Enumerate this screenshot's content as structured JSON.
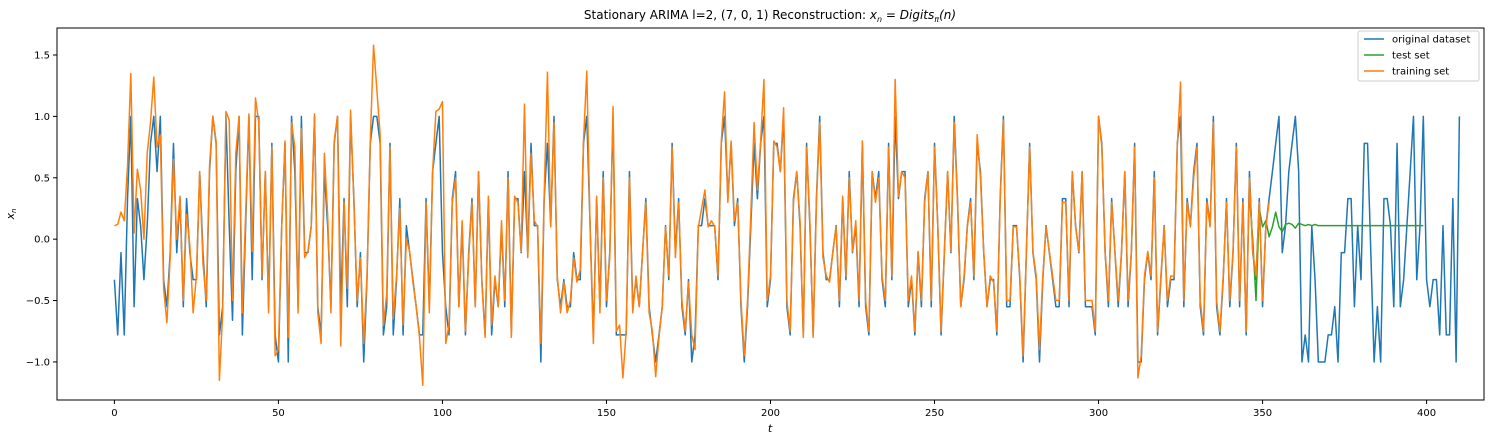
{
  "chart_data": {
    "type": "line",
    "title": "Stationary ARIMA l=2, (7, 0, 1) Reconstruction: x_n = Digits_π(n)",
    "title_parts": {
      "prefix": "Stationary ARIMA l=2, (7, 0, 1) Reconstruction: ",
      "x": "x",
      "n": "n",
      "equals": " = ",
      "digits": "Digits",
      "pi": "π",
      "arg": "(n)"
    },
    "xlabel": "t",
    "ylabel_base": "x",
    "ylabel_sub": "n",
    "xlim": [
      -17.5,
      417.5
    ],
    "ylim": [
      -1.31,
      1.72
    ],
    "x_ticks": [
      0,
      50,
      100,
      150,
      200,
      250,
      300,
      350,
      400
    ],
    "x_tick_labels": [
      "0",
      "50",
      "100",
      "150",
      "200",
      "250",
      "300",
      "350",
      "400"
    ],
    "y_ticks": [
      -1.0,
      -0.5,
      0.0,
      0.5,
      1.0,
      1.5
    ],
    "y_tick_labels": [
      "−1.0",
      "−0.5",
      "0.0",
      "0.5",
      "1.0",
      "1.5"
    ],
    "legend_position": "top-right",
    "grid": false,
    "series": [
      {
        "name": "original dataset",
        "color": "#1f77b4",
        "x_start": 0,
        "values": [
          -0.33,
          -0.78,
          -0.11,
          -0.78,
          0.33,
          1.0,
          -0.55,
          0.33,
          0.11,
          -0.33,
          0.11,
          0.78,
          1.0,
          0.55,
          1.0,
          -0.33,
          -0.55,
          -0.11,
          0.78,
          -0.11,
          0.33,
          -0.55,
          0.33,
          -0.11,
          -0.33,
          -0.33,
          0.55,
          -0.11,
          -0.55,
          0.55,
          1.0,
          0.78,
          -0.78,
          -0.55,
          1.0,
          0.11,
          -0.66,
          0.55,
          1.0,
          -0.78,
          0.11,
          1.0,
          -0.33,
          1.0,
          1.0,
          -0.33,
          0.55,
          -0.55,
          0.78,
          -0.78,
          -1.0,
          0.11,
          0.78,
          -1.0,
          1.0,
          0.55,
          -0.55,
          1.0,
          -0.11,
          -0.11,
          0.11,
          1.0,
          -0.55,
          -0.78,
          0.55,
          0.11,
          -0.55,
          0.78,
          1.0,
          -0.55,
          0.33,
          -0.55,
          1.0,
          0.33,
          -0.55,
          -0.11,
          -1.0,
          -0.33,
          0.78,
          1.0,
          1.0,
          0.78,
          -0.78,
          -0.55,
          0.78,
          -0.78,
          -0.33,
          0.33,
          -0.78,
          0.11,
          -0.11,
          -0.33,
          -0.55,
          -0.78,
          -0.78,
          0.33,
          -0.55,
          0.55,
          0.78,
          1.0,
          -0.11,
          -0.55,
          -0.78,
          0.33,
          0.55,
          -0.55,
          0.11,
          -0.78,
          -0.11,
          0.33,
          -0.55,
          0.55,
          -0.33,
          -0.78,
          0.33,
          -0.78,
          -0.33,
          -0.55,
          0.11,
          -0.55,
          0.55,
          -0.78,
          0.33,
          0.33,
          -0.11,
          0.55,
          -0.11,
          0.78,
          0.11,
          0.11,
          -1.0,
          0.33,
          0.78,
          0.11,
          1.0,
          -0.33,
          -0.55,
          -0.33,
          -0.55,
          -0.55,
          -0.11,
          -0.33,
          -0.33,
          0.78,
          1.0,
          0.11,
          -0.78,
          0.33,
          -0.55,
          0.55,
          -0.55,
          -0.11,
          1.0,
          -0.78,
          -0.78,
          -0.78,
          -0.78,
          0.55,
          -0.55,
          -0.33,
          -0.55,
          -0.11,
          0.33,
          -0.55,
          -0.78,
          -1.0,
          -0.78,
          -0.55,
          0.11,
          -0.33,
          0.78,
          -0.11,
          0.33,
          -0.55,
          -0.78,
          -0.33,
          -1.0,
          -0.78,
          0.11,
          0.11,
          0.33,
          0.11,
          0.11,
          0.11,
          -0.33,
          0.78,
          1.0,
          0.33,
          0.78,
          0.11,
          0.33,
          -0.55,
          -1.0,
          -0.55,
          0.11,
          0.78,
          0.33,
          0.78,
          1.0,
          -0.55,
          -0.33,
          0.78,
          0.78,
          0.55,
          1.0,
          -0.55,
          -0.78,
          0.33,
          0.55,
          0.11,
          -0.78,
          0.78,
          0.11,
          -0.78,
          0.33,
          1.0,
          -0.11,
          -0.33,
          -0.33,
          -0.11,
          0.11,
          -0.55,
          0.33,
          -0.33,
          0.55,
          -0.11,
          0.11,
          -0.55,
          0.78,
          -0.55,
          -0.78,
          0.55,
          0.33,
          0.55,
          -0.33,
          -0.55,
          0.78,
          -0.33,
          1.0,
          0.33,
          0.55,
          0.55,
          -0.55,
          -0.33,
          -0.78,
          -0.11,
          -0.55,
          0.33,
          0.55,
          -0.55,
          0.78,
          0.11,
          -0.78,
          -0.11,
          0.55,
          -0.11,
          1.0,
          0.33,
          -0.55,
          -0.33,
          0.11,
          0.33,
          -0.33,
          0.78,
          0.55,
          -0.11,
          -0.55,
          -0.33,
          -0.33,
          -0.78,
          0.33,
          1.0,
          -0.55,
          -0.55,
          0.11,
          0.11,
          -0.33,
          -1.0,
          -0.11,
          0.78,
          -0.11,
          -0.33,
          -1.0,
          -0.33,
          0.11,
          -0.11,
          -0.33,
          -0.55,
          -0.55,
          0.33,
          0.33,
          -0.55,
          0.55,
          0.11,
          -0.11,
          0.55,
          -0.55,
          -0.55,
          -0.55,
          -0.78,
          1.0,
          0.78,
          -0.11,
          -0.55,
          0.33,
          -0.11,
          -0.55,
          -0.11,
          0.55,
          -0.55,
          -0.11,
          0.78,
          -1.0,
          -1.0,
          -0.33,
          -0.11,
          -0.33,
          0.55,
          -0.78,
          -0.33,
          0.11,
          -0.55,
          -0.33,
          -0.33,
          0.78,
          1.0,
          -0.55,
          0.33,
          0.11,
          0.55,
          0.78,
          -0.55,
          -0.78,
          0.33,
          0.11,
          1.0,
          -0.55,
          -0.78,
          -0.33,
          0.33,
          -0.55,
          -0.11,
          0.78,
          -0.55,
          0.33,
          -0.78,
          0.55,
          -0.11,
          -0.33,
          0.33,
          -0.55,
          0.11,
          0.33,
          0.55,
          0.78,
          1.0,
          -0.11,
          0.11,
          0.55,
          0.78,
          1.0,
          0.55,
          -1.0,
          -0.78,
          -1.0,
          0.11,
          -0.33,
          -1.0,
          -1.0,
          -1.0,
          -0.78,
          -0.78,
          -0.55,
          -1.0,
          -0.11,
          -0.11,
          0.33,
          0.33,
          -0.55,
          0.11,
          -0.33,
          0.78,
          0.78,
          -0.11,
          -1.0,
          -0.55,
          -1.0,
          0.33,
          0.33,
          0.11,
          -0.55,
          0.78,
          -0.55,
          -0.33,
          0.11,
          0.55,
          1.0,
          -0.33,
          0.11,
          1.0,
          -0.33,
          -0.55,
          -0.33,
          -0.33,
          -0.78,
          0.11,
          -0.78,
          -0.78,
          0.33,
          -1.0,
          1.0
        ]
      },
      {
        "name": "test set",
        "color": "#2ca02c",
        "x_start": 346,
        "values": [
          0.35,
          0.0,
          -0.5,
          0.25,
          0.1,
          0.15,
          0.02,
          0.1,
          0.22,
          0.1,
          0.06,
          0.12,
          0.13,
          0.12,
          0.09,
          0.13,
          0.12,
          0.11,
          0.12,
          0.11,
          0.12,
          0.11,
          0.11,
          0.11,
          0.11,
          0.11,
          0.11,
          0.11,
          0.11,
          0.11,
          0.11,
          0.11,
          0.11,
          0.11,
          0.11,
          0.11,
          0.11,
          0.11,
          0.11,
          0.11,
          0.11,
          0.11,
          0.11,
          0.11,
          0.11,
          0.11,
          0.11,
          0.11,
          0.11,
          0.11,
          0.11,
          0.11,
          0.11,
          0.11
        ]
      },
      {
        "name": "training set",
        "color": "#ff7f0e",
        "x_start": 0,
        "values": [
          0.11,
          0.12,
          0.22,
          0.15,
          0.6,
          1.35,
          0.05,
          0.57,
          0.4,
          0.0,
          0.7,
          0.95,
          1.32,
          0.75,
          0.85,
          -0.4,
          -0.68,
          -0.15,
          0.65,
          0.0,
          0.35,
          -0.5,
          0.2,
          -0.05,
          -0.6,
          -0.3,
          0.55,
          -0.2,
          -0.5,
          0.6,
          1.0,
          0.8,
          -1.15,
          -0.6,
          1.04,
          0.97,
          -0.5,
          0.7,
          1.0,
          -0.6,
          0.2,
          1.02,
          -0.1,
          1.15,
          0.95,
          -0.3,
          0.55,
          -0.6,
          0.75,
          -0.95,
          -0.9,
          0.1,
          0.8,
          -0.8,
          0.95,
          0.75,
          -0.6,
          0.9,
          -0.15,
          -0.1,
          0.1,
          1.02,
          -0.6,
          -0.85,
          0.7,
          0.2,
          -0.6,
          0.8,
          1.0,
          -0.87,
          0.3,
          -0.4,
          1.05,
          0.3,
          -0.5,
          -0.15,
          -0.85,
          -0.3,
          0.8,
          1.58,
          1.22,
          0.85,
          -0.7,
          -0.45,
          0.75,
          -0.65,
          -0.3,
          0.25,
          -0.7,
          0.0,
          -0.1,
          -0.35,
          -0.55,
          -0.8,
          -1.19,
          0.3,
          -0.6,
          0.55,
          1.04,
          1.06,
          1.12,
          -0.85,
          -0.7,
          0.3,
          0.5,
          -0.55,
          0.15,
          -0.75,
          -0.15,
          0.3,
          -0.55,
          0.55,
          -0.35,
          -0.8,
          0.35,
          -0.7,
          -0.3,
          -0.55,
          0.15,
          -0.5,
          0.5,
          -0.8,
          0.35,
          0.3,
          -0.1,
          1.1,
          -0.15,
          0.7,
          0.15,
          0.1,
          -0.85,
          0.35,
          1.36,
          0.1,
          0.95,
          -0.3,
          -0.6,
          -0.35,
          -0.6,
          -0.5,
          -0.15,
          -0.35,
          -0.25,
          0.8,
          1.37,
          0.1,
          -0.85,
          0.35,
          -0.6,
          0.5,
          -0.5,
          -0.15,
          1.08,
          -0.75,
          -0.7,
          -1.13,
          -0.75,
          0.5,
          -0.6,
          -0.3,
          -0.55,
          -0.1,
          0.3,
          -0.6,
          -0.75,
          -1.12,
          -0.8,
          -0.55,
          0.1,
          -0.3,
          0.75,
          -0.15,
          0.3,
          -0.5,
          -0.75,
          -0.35,
          -0.78,
          -0.9,
          0.1,
          0.25,
          0.4,
          0.1,
          0.15,
          0.1,
          -0.3,
          0.8,
          1.2,
          0.3,
          0.8,
          0.15,
          0.3,
          -0.5,
          -0.95,
          -0.5,
          0.2,
          0.95,
          0.4,
          0.8,
          1.3,
          -0.5,
          -0.3,
          0.8,
          0.75,
          0.55,
          1.07,
          -0.5,
          -0.75,
          0.3,
          0.55,
          0.15,
          -0.8,
          0.75,
          0.15,
          -0.8,
          0.3,
          0.95,
          -0.15,
          -0.3,
          -0.35,
          -0.1,
          0.1,
          -0.5,
          0.35,
          -0.3,
          0.5,
          -0.1,
          0.15,
          -0.5,
          0.8,
          -0.5,
          -0.75,
          0.55,
          0.3,
          0.5,
          -0.3,
          -0.5,
          0.75,
          -0.3,
          1.3,
          0.35,
          0.55,
          0.5,
          -0.5,
          -0.3,
          -0.75,
          -0.1,
          -0.5,
          0.3,
          0.55,
          -0.5,
          0.75,
          0.1,
          -0.75,
          -0.1,
          0.55,
          -0.1,
          0.95,
          0.3,
          -0.55,
          -0.3,
          0.1,
          0.3,
          -0.3,
          0.85,
          0.5,
          -0.1,
          -0.55,
          -0.3,
          -0.35,
          -0.75,
          0.3,
          0.97,
          -0.5,
          -0.5,
          0.1,
          0.1,
          -0.3,
          -0.95,
          -0.1,
          0.75,
          -0.1,
          -0.3,
          -0.9,
          -0.3,
          0.1,
          -0.1,
          -0.3,
          -0.5,
          -0.5,
          0.3,
          0.3,
          -0.5,
          0.55,
          0.1,
          -0.1,
          0.55,
          -0.5,
          -0.5,
          -0.5,
          -0.75,
          1.0,
          0.75,
          -0.1,
          -0.5,
          0.3,
          -0.1,
          -0.5,
          -0.1,
          0.55,
          -0.5,
          -0.1,
          0.75,
          -1.13,
          -0.95,
          -0.3,
          -0.1,
          -0.3,
          0.5,
          -0.75,
          -0.3,
          0.1,
          -0.5,
          -0.3,
          -0.3,
          0.75,
          1.28,
          -0.5,
          0.3,
          0.1,
          0.5,
          0.75,
          -0.5,
          -0.75,
          0.3,
          0.1,
          0.95,
          -0.5,
          -0.75,
          -0.3,
          0.3,
          -0.5,
          -0.1,
          0.75,
          -0.5,
          0.3,
          -0.75,
          0.5,
          -0.1,
          -0.3,
          0.3,
          -0.5,
          0.1,
          0.3
        ]
      }
    ]
  }
}
